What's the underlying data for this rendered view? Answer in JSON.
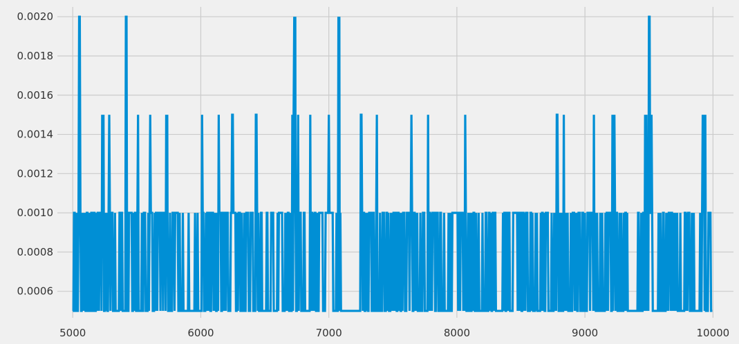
{
  "chart_data": {
    "type": "line",
    "title": "",
    "xlabel": "",
    "ylabel": "",
    "xlim": [
      4880,
      10160
    ],
    "ylim": [
      0.000465,
      0.00205
    ],
    "x_ticks": [
      5000,
      6000,
      7000,
      8000,
      9000,
      10000
    ],
    "x_tick_labels": [
      "5000",
      "6000",
      "7000",
      "8000",
      "9000",
      "10000"
    ],
    "y_ticks": [
      0.0006,
      0.0008,
      0.001,
      0.0012,
      0.0014,
      0.0016,
      0.0018,
      0.002
    ],
    "y_tick_labels": [
      "0.0006",
      "0.0008",
      "0.0010",
      "0.0012",
      "0.0014",
      "0.0016",
      "0.0018",
      "0.0020"
    ],
    "grid": true,
    "style": "fivethirtyeight",
    "colors": {
      "background": "#f0f0f0",
      "grid": "#cbcbcb",
      "line": "#008fd5"
    },
    "baseline": 0.0005,
    "x_range": [
      5000,
      9999
    ],
    "series": [
      {
        "name": "",
        "spikes": [
          {
            "x": 5050,
            "y": 0.002
          },
          {
            "x": 5055,
            "y": 0.002
          },
          {
            "x": 5230,
            "y": 0.0015
          },
          {
            "x": 5240,
            "y": 0.0015
          },
          {
            "x": 5285,
            "y": 0.0015
          },
          {
            "x": 5415,
            "y": 0.002
          },
          {
            "x": 5420,
            "y": 0.002
          },
          {
            "x": 5510,
            "y": 0.0015
          },
          {
            "x": 5605,
            "y": 0.0015
          },
          {
            "x": 5730,
            "y": 0.0015
          },
          {
            "x": 5738,
            "y": 0.0015
          },
          {
            "x": 6010,
            "y": 0.0015
          },
          {
            "x": 6140,
            "y": 0.0015
          },
          {
            "x": 6245,
            "y": 0.0015
          },
          {
            "x": 6250,
            "y": 0.0015
          },
          {
            "x": 6430,
            "y": 0.0015
          },
          {
            "x": 6435,
            "y": 0.0015
          },
          {
            "x": 6715,
            "y": 0.0015
          },
          {
            "x": 6725,
            "y": 0.0015
          },
          {
            "x": 6730,
            "y": 0.002
          },
          {
            "x": 6738,
            "y": 0.002
          },
          {
            "x": 6760,
            "y": 0.0015
          },
          {
            "x": 6855,
            "y": 0.0015
          },
          {
            "x": 7000,
            "y": 0.0015
          },
          {
            "x": 7075,
            "y": 0.002
          },
          {
            "x": 7082,
            "y": 0.002
          },
          {
            "x": 7250,
            "y": 0.0015
          },
          {
            "x": 7255,
            "y": 0.0015
          },
          {
            "x": 7375,
            "y": 0.0015
          },
          {
            "x": 7645,
            "y": 0.0015
          },
          {
            "x": 7775,
            "y": 0.0015
          },
          {
            "x": 8065,
            "y": 0.0015
          },
          {
            "x": 8780,
            "y": 0.0015
          },
          {
            "x": 8785,
            "y": 0.0015
          },
          {
            "x": 8835,
            "y": 0.0015
          },
          {
            "x": 9070,
            "y": 0.0015
          },
          {
            "x": 9215,
            "y": 0.0015
          },
          {
            "x": 9230,
            "y": 0.0015
          },
          {
            "x": 9470,
            "y": 0.0015
          },
          {
            "x": 9480,
            "y": 0.0015
          },
          {
            "x": 9500,
            "y": 0.002
          },
          {
            "x": 9505,
            "y": 0.002
          },
          {
            "x": 9520,
            "y": 0.0015
          },
          {
            "x": 9920,
            "y": 0.0015
          },
          {
            "x": 9930,
            "y": 0.0015
          },
          {
            "x": 9940,
            "y": 0.0015
          }
        ],
        "gaps": [
          [
            7100,
            7230
          ],
          [
            6820,
            6830
          ],
          [
            9360,
            9410
          ],
          [
            6480,
            6500
          ],
          [
            8310,
            8330
          ],
          [
            9870,
            9890
          ]
        ],
        "steps_at": [
          0.0005,
          0.001
        ]
      }
    ]
  }
}
